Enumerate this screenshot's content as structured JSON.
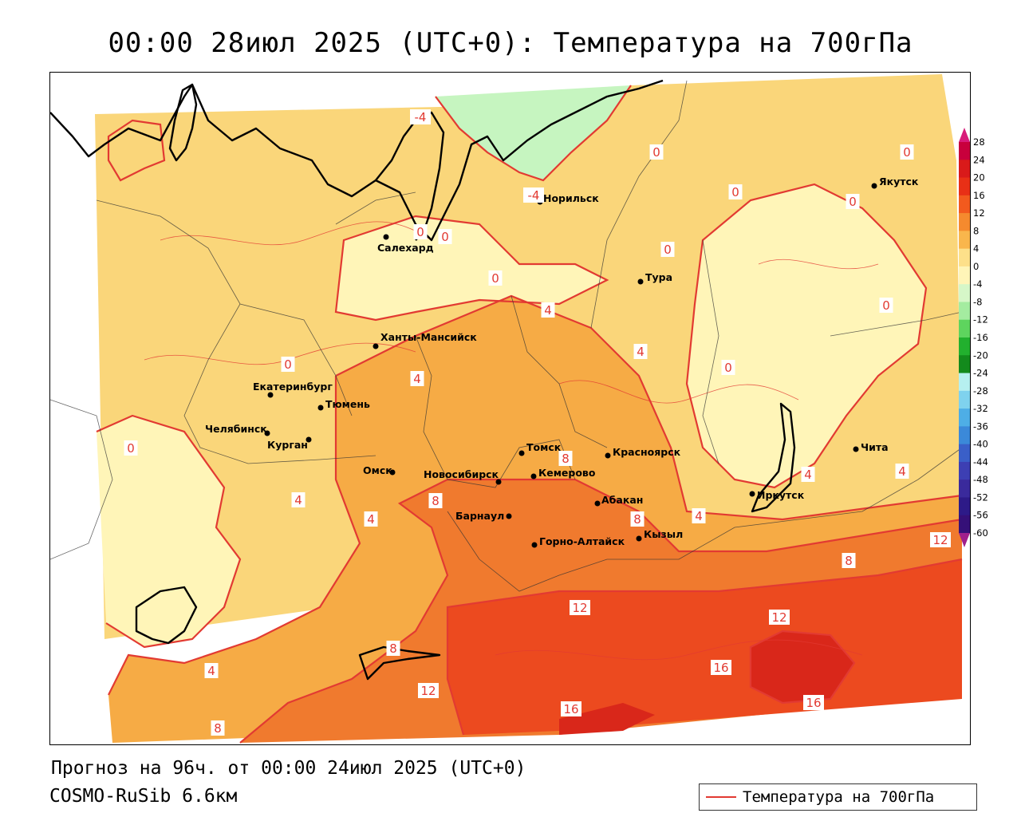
{
  "title": "00:00 28июл 2025 (UTC+0): Температура на 700гПа",
  "footer": {
    "forecast": "Прогноз на 96ч. от 00:00 24июл 2025 (UTC+0)",
    "model": "COSMO-RuSib 6.6км"
  },
  "key": {
    "line_label": "Температура на 700гПа",
    "line_color": "#e23a32"
  },
  "colors": {
    "zone_cold": "#c6f5c0",
    "zone_0": "#fff5b8",
    "zone_4": "#fad67a",
    "zone_8": "#f6ab45",
    "zone_12": "#f07a2e",
    "zone_16": "#ec4a1f",
    "zone_20": "#d9271a",
    "isotherm": "#e23a32"
  },
  "cities": [
    {
      "name": "Якутск"
    },
    {
      "name": "Норильск"
    },
    {
      "name": "Салехард"
    },
    {
      "name": "Тура"
    },
    {
      "name": "Ханты-Мансийск"
    },
    {
      "name": "Екатеринбург"
    },
    {
      "name": "Тюмень"
    },
    {
      "name": "Челябинск"
    },
    {
      "name": "Курган"
    },
    {
      "name": "Омск"
    },
    {
      "name": "Томск"
    },
    {
      "name": "Красноярск"
    },
    {
      "name": "Новосибирск"
    },
    {
      "name": "Кемерово"
    },
    {
      "name": "Абакан"
    },
    {
      "name": "Барнаул"
    },
    {
      "name": "Горно-Алтайск"
    },
    {
      "name": "Кызыл"
    },
    {
      "name": "Иркутск"
    },
    {
      "name": "Чита"
    }
  ],
  "isotherm_labels": [
    "-4",
    "-4",
    "0",
    "0",
    "0",
    "0",
    "0",
    "0",
    "0",
    "0",
    "0",
    "0",
    "0",
    "0",
    "4",
    "4",
    "4",
    "4",
    "4",
    "4",
    "4",
    "4",
    "8",
    "8",
    "8",
    "8",
    "8",
    "8",
    "12",
    "12",
    "12",
    "12",
    "16",
    "16",
    "16",
    "4"
  ],
  "legend": {
    "ticks": [
      "28",
      "24",
      "20",
      "16",
      "12",
      "8",
      "4",
      "0",
      "-4",
      "-8",
      "-12",
      "-16",
      "-20",
      "-24",
      "-28",
      "-32",
      "-36",
      "-40",
      "-44",
      "-48",
      "-52",
      "-56",
      "-60"
    ],
    "colors": [
      "#c8003c",
      "#d91a1a",
      "#e83016",
      "#f25a1e",
      "#f58a2e",
      "#f9b64c",
      "#fde08a",
      "#fff5b8",
      "#d6f7c8",
      "#a4eca0",
      "#5ed45e",
      "#22b02e",
      "#138a1c",
      "#b6f0f0",
      "#7fd2ee",
      "#4eaee6",
      "#3b89d9",
      "#3a5fc8",
      "#3d3fb3",
      "#3a2a9c",
      "#2d1a88",
      "#351078"
    ]
  }
}
